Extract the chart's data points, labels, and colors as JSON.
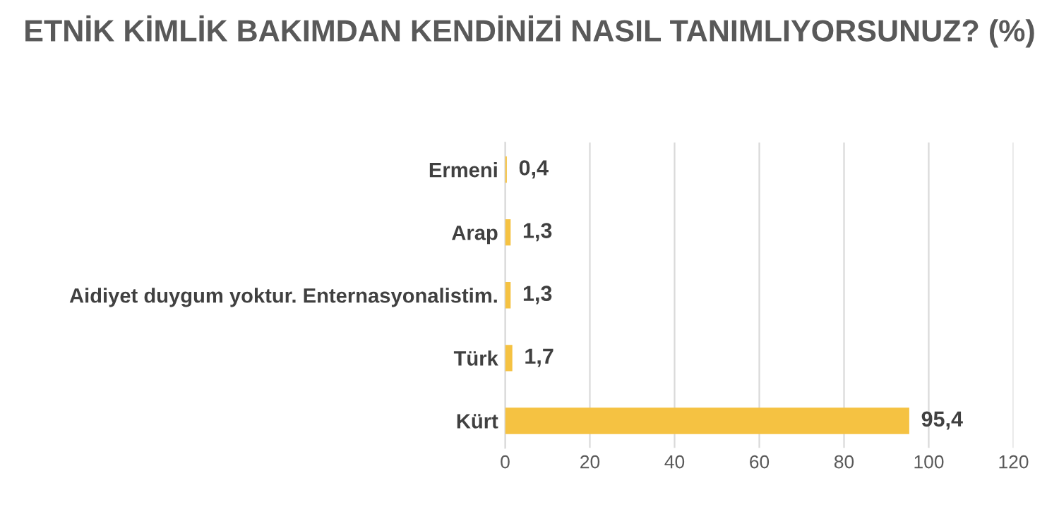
{
  "chart_data": {
    "type": "bar",
    "orientation": "horizontal",
    "title": "ETNİK KİMLİK BAKIMDAN KENDİNİZİ NASIL TANIMLIYORSUNUZ? (%)",
    "categories": [
      "Ermeni",
      "Arap",
      "Aidiyet duygum yoktur. Enternasyonalistim.",
      "Türk",
      "Kürt"
    ],
    "values": [
      0.4,
      1.3,
      1.3,
      1.7,
      95.4
    ],
    "value_labels": [
      "0,4",
      "1,3",
      "1,3",
      "1,7",
      "95,4"
    ],
    "color": "#f5c242",
    "xlim": [
      0,
      120
    ],
    "xticks": [
      0,
      20,
      40,
      60,
      80,
      100,
      120
    ],
    "grid": "x"
  }
}
